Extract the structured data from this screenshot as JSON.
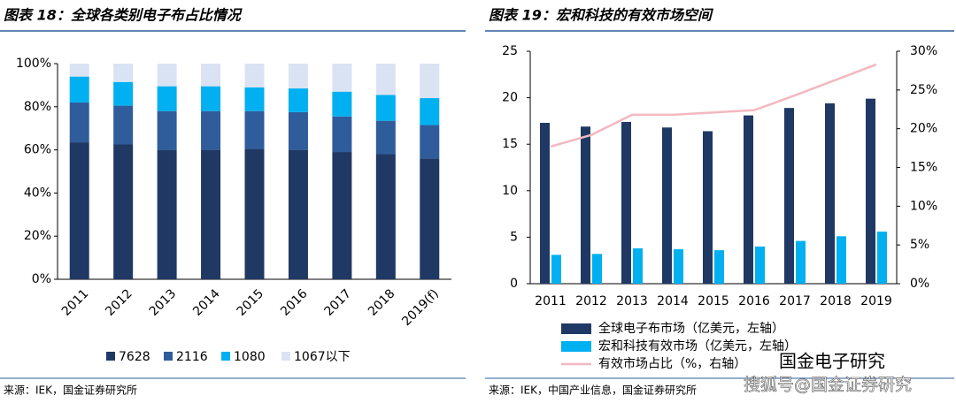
{
  "chart_data": [
    {
      "type": "bar",
      "stacked": true,
      "title": "图表 18：全球各类别电子布占比情况",
      "source": "来源：IEK，国金证券研究所",
      "categories": [
        "2011",
        "2012",
        "2013",
        "2014",
        "2015",
        "2016",
        "2017",
        "2018",
        "2019(f)"
      ],
      "series": [
        {
          "name": "7628",
          "color": "#203864",
          "values": [
            63.5,
            62.5,
            60,
            60,
            60.5,
            60,
            59,
            58,
            56
          ]
        },
        {
          "name": "2116",
          "color": "#2f5d9b",
          "values": [
            18.5,
            18,
            18,
            18,
            17.5,
            17.5,
            16.5,
            15.5,
            15.5
          ]
        },
        {
          "name": "1080",
          "color": "#00b0f0",
          "values": [
            12,
            11,
            11.5,
            11.5,
            11,
            11,
            11.5,
            12,
            12.5
          ]
        },
        {
          "name": "1067以下",
          "color": "#dae3f3",
          "values": [
            6,
            8.5,
            10.5,
            10.5,
            11,
            11.5,
            13,
            14.5,
            16
          ]
        }
      ],
      "ylim": [
        0,
        100
      ],
      "yticks": [
        {
          "value": 0,
          "label": "0%"
        },
        {
          "value": 20,
          "label": "20%"
        },
        {
          "value": 40,
          "label": "40%"
        },
        {
          "value": 60,
          "label": "60%"
        },
        {
          "value": 80,
          "label": "80%"
        },
        {
          "value": 100,
          "label": "100%"
        }
      ],
      "legend": "bottom"
    },
    {
      "type": "bar",
      "title": "图表 19：宏和科技的有效市场空间",
      "source": "来源：IEK，中国产业信息，国金证券研究所",
      "categories": [
        "2011",
        "2012",
        "2013",
        "2014",
        "2015",
        "2016",
        "2017",
        "2018",
        "2019"
      ],
      "series": [
        {
          "name": "全球电子布市场（亿美元，左轴）",
          "color": "#203864",
          "values": [
            17.3,
            16.9,
            17.4,
            16.8,
            16.4,
            18.1,
            18.9,
            19.4,
            19.9
          ]
        },
        {
          "name": "宏和科技有效市场（亿美元，左轴）",
          "color": "#00b0f0",
          "values": [
            3.1,
            3.2,
            3.8,
            3.7,
            3.6,
            4.0,
            4.6,
            5.1,
            5.6
          ]
        },
        {
          "name": "有效市场占比（%，右轴）",
          "color": "#f2b8c0",
          "type": "line",
          "axis": "y2",
          "values": [
            17.7,
            19.2,
            21.8,
            21.8,
            22.1,
            22.4,
            24.3,
            26.3,
            28.3
          ]
        }
      ],
      "ylim": [
        0,
        25
      ],
      "yticks": [
        0,
        5,
        10,
        15,
        20,
        25
      ],
      "y2lim": [
        0,
        30
      ],
      "y2ticks": [
        {
          "value": 0,
          "label": "0%"
        },
        {
          "value": 5,
          "label": "5%"
        },
        {
          "value": 10,
          "label": "10%"
        },
        {
          "value": 15,
          "label": "15%"
        },
        {
          "value": 20,
          "label": "20%"
        },
        {
          "value": 25,
          "label": "25%"
        },
        {
          "value": 30,
          "label": "30%"
        }
      ],
      "legend": "bottom"
    }
  ],
  "watermarks": [
    "国金电子研究",
    "搜狐号@国金证券研究"
  ]
}
